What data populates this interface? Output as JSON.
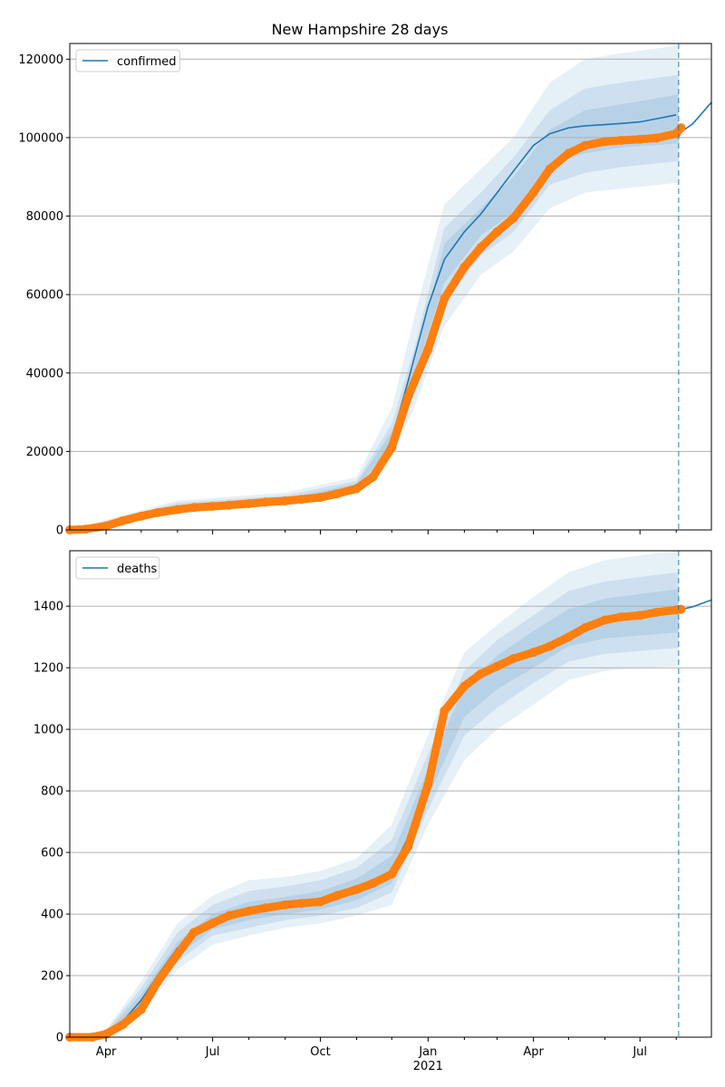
{
  "figure_title": "New Hampshire 28 days",
  "colors": {
    "model_line": "#1f77b4",
    "observed": "#ff7f0e",
    "band": "#1f77b4",
    "grid": "#b0b0b0",
    "axis": "#000000"
  },
  "chart_data": [
    {
      "type": "line",
      "panel": "top",
      "title": "New Hampshire 28 days",
      "legend": [
        "confirmed"
      ],
      "legend_position": "top-left",
      "grid": "horizontal",
      "xlim": [
        "2020-03-01",
        "2021-08-31"
      ],
      "ylim": [
        0,
        124000
      ],
      "yticks": [
        0,
        20000,
        40000,
        60000,
        80000,
        100000,
        120000
      ],
      "ytick_labels": [
        "0",
        "20000",
        "40000",
        "60000",
        "80000",
        "100000",
        "120000"
      ],
      "forecast_start": "2021-08-03",
      "series": [
        {
          "name": "confirmed",
          "kind": "model-median",
          "x": [
            "2020-03-01",
            "2020-04-01",
            "2020-05-01",
            "2020-06-01",
            "2020-07-01",
            "2020-08-01",
            "2020-09-01",
            "2020-10-01",
            "2020-11-01",
            "2020-11-15",
            "2020-12-01",
            "2020-12-15",
            "2021-01-01",
            "2021-01-15",
            "2021-02-01",
            "2021-02-15",
            "2021-03-01",
            "2021-03-15",
            "2021-04-01",
            "2021-04-15",
            "2021-05-01",
            "2021-05-15",
            "2021-06-01",
            "2021-06-15",
            "2021-07-01",
            "2021-07-15",
            "2021-08-01",
            "2021-08-03",
            "2021-08-15",
            "2021-08-31"
          ],
          "y": [
            0,
            1500,
            3500,
            5200,
            5900,
            6600,
            7300,
            8300,
            11000,
            14000,
            23000,
            38000,
            57000,
            69000,
            76000,
            80500,
            86000,
            91500,
            98000,
            101000,
            102500,
            103000,
            103300,
            103600,
            104000,
            104800,
            105800,
            101000,
            103500,
            109000
          ]
        },
        {
          "name": "",
          "kind": "observed",
          "x": [
            "2020-03-01",
            "2020-03-15",
            "2020-04-01",
            "2020-04-15",
            "2020-05-01",
            "2020-05-15",
            "2020-06-01",
            "2020-06-15",
            "2020-07-01",
            "2020-07-15",
            "2020-08-01",
            "2020-08-15",
            "2020-09-01",
            "2020-09-15",
            "2020-10-01",
            "2020-10-15",
            "2020-11-01",
            "2020-11-15",
            "2020-12-01",
            "2020-12-15",
            "2021-01-01",
            "2021-01-15",
            "2021-02-01",
            "2021-02-15",
            "2021-03-01",
            "2021-03-15",
            "2021-04-01",
            "2021-04-15",
            "2021-05-01",
            "2021-05-15",
            "2021-06-01",
            "2021-06-15",
            "2021-07-01",
            "2021-07-15",
            "2021-08-01",
            "2021-08-05"
          ],
          "y": [
            0,
            200,
            1000,
            2300,
            3500,
            4400,
            5200,
            5700,
            6000,
            6300,
            6700,
            7100,
            7400,
            7800,
            8300,
            9200,
            10500,
            13500,
            21000,
            34000,
            46000,
            59000,
            67000,
            72000,
            76000,
            79500,
            86000,
            92000,
            96000,
            98000,
            99000,
            99300,
            99600,
            99900,
            101000,
            102500
          ]
        }
      ],
      "bands": [
        {
          "level": "outer",
          "x": [
            "2020-03-01",
            "2020-06-01",
            "2020-09-01",
            "2020-11-01",
            "2020-12-01",
            "2020-12-20",
            "2021-01-15",
            "2021-02-15",
            "2021-03-15",
            "2021-04-15",
            "2021-05-15",
            "2021-06-15",
            "2021-08-03"
          ],
          "lower": [
            0,
            4500,
            6300,
            9300,
            19000,
            31000,
            52000,
            65000,
            71000,
            82000,
            86000,
            87000,
            88500
          ],
          "upper": [
            0,
            7500,
            9500,
            13500,
            31000,
            54000,
            83000,
            92000,
            100000,
            114000,
            120000,
            121500,
            123500
          ]
        },
        {
          "level": "middle",
          "x": [
            "2020-03-01",
            "2020-06-01",
            "2020-09-01",
            "2020-11-01",
            "2020-12-01",
            "2020-12-20",
            "2021-01-15",
            "2021-02-15",
            "2021-03-15",
            "2021-04-15",
            "2021-05-15",
            "2021-06-15",
            "2021-08-03"
          ],
          "lower": [
            0,
            4800,
            6700,
            9900,
            21000,
            36000,
            58000,
            70000,
            76000,
            88000,
            91000,
            92500,
            94000
          ],
          "upper": [
            0,
            6900,
            8800,
            12500,
            27000,
            46000,
            77000,
            86000,
            95000,
            107000,
            112500,
            114000,
            116000
          ]
        },
        {
          "level": "inner",
          "x": [
            "2020-03-01",
            "2020-06-01",
            "2020-09-01",
            "2020-11-01",
            "2020-12-01",
            "2020-12-20",
            "2021-01-15",
            "2021-02-15",
            "2021-03-15",
            "2021-04-15",
            "2021-05-15",
            "2021-06-15",
            "2021-08-03"
          ],
          "lower": [
            0,
            5000,
            7000,
            10300,
            22000,
            39000,
            63000,
            75000,
            81000,
            93000,
            96000,
            97500,
            98500
          ],
          "upper": [
            0,
            6200,
            8000,
            11800,
            25000,
            42000,
            73000,
            82000,
            90000,
            102000,
            107000,
            108500,
            111000
          ]
        }
      ]
    },
    {
      "type": "line",
      "panel": "bottom",
      "legend": [
        "deaths"
      ],
      "legend_position": "top-left",
      "grid": "horizontal",
      "xlim": [
        "2020-03-01",
        "2021-08-31"
      ],
      "ylim": [
        0,
        1580
      ],
      "yticks": [
        0,
        200,
        400,
        600,
        800,
        1000,
        1200,
        1400
      ],
      "ytick_labels": [
        "0",
        "200",
        "400",
        "600",
        "800",
        "1000",
        "1200",
        "1400"
      ],
      "xtick_labels": [
        "Apr",
        "Jul",
        "Oct",
        "Jan",
        "Apr",
        "Jul"
      ],
      "xtick_dates": [
        "2020-04-01",
        "2020-07-01",
        "2020-10-01",
        "2021-01-01",
        "2021-04-01",
        "2021-07-01"
      ],
      "x_year_label": "2021",
      "forecast_start": "2021-08-03",
      "series": [
        {
          "name": "deaths",
          "kind": "model-median",
          "x": [
            "2020-03-01",
            "2020-04-01",
            "2020-04-15",
            "2020-05-01",
            "2020-05-15",
            "2020-06-01",
            "2020-06-15",
            "2020-07-01",
            "2020-08-01",
            "2020-09-01",
            "2020-10-01",
            "2020-11-01",
            "2020-11-15",
            "2020-12-01",
            "2020-12-15",
            "2021-01-01",
            "2021-01-15",
            "2021-02-01",
            "2021-02-15",
            "2021-03-01",
            "2021-04-01",
            "2021-05-01",
            "2021-06-01",
            "2021-07-01",
            "2021-08-01",
            "2021-08-03",
            "2021-08-15",
            "2021-08-31"
          ],
          "y": [
            0,
            10,
            50,
            120,
            200,
            290,
            340,
            370,
            410,
            425,
            440,
            480,
            500,
            540,
            650,
            820,
            1060,
            1130,
            1170,
            1200,
            1250,
            1310,
            1360,
            1375,
            1388,
            1388,
            1398,
            1420
          ]
        },
        {
          "name": "",
          "kind": "observed",
          "x": [
            "2020-03-01",
            "2020-03-20",
            "2020-04-01",
            "2020-04-15",
            "2020-05-01",
            "2020-05-15",
            "2020-06-01",
            "2020-06-15",
            "2020-07-01",
            "2020-07-15",
            "2020-08-01",
            "2020-08-15",
            "2020-09-01",
            "2020-09-15",
            "2020-10-01",
            "2020-10-15",
            "2020-11-01",
            "2020-11-15",
            "2020-12-01",
            "2020-12-15",
            "2021-01-01",
            "2021-01-15",
            "2021-02-01",
            "2021-02-15",
            "2021-03-01",
            "2021-03-15",
            "2021-04-01",
            "2021-04-15",
            "2021-05-01",
            "2021-05-15",
            "2021-06-01",
            "2021-06-15",
            "2021-07-01",
            "2021-07-15",
            "2021-08-01",
            "2021-08-05"
          ],
          "y": [
            0,
            0,
            10,
            40,
            90,
            180,
            270,
            340,
            370,
            395,
            410,
            420,
            430,
            435,
            440,
            460,
            480,
            500,
            530,
            620,
            820,
            1060,
            1140,
            1180,
            1205,
            1230,
            1250,
            1270,
            1300,
            1330,
            1355,
            1365,
            1370,
            1380,
            1388,
            1390
          ]
        }
      ],
      "bands": [
        {
          "level": "outer",
          "x": [
            "2020-03-01",
            "2020-04-01",
            "2020-05-01",
            "2020-06-01",
            "2020-07-01",
            "2020-08-01",
            "2020-09-01",
            "2020-10-01",
            "2020-11-01",
            "2020-12-01",
            "2021-01-01",
            "2021-02-01",
            "2021-03-01",
            "2021-04-01",
            "2021-05-01",
            "2021-06-01",
            "2021-07-01",
            "2021-08-03"
          ],
          "lower": [
            0,
            5,
            80,
            220,
            300,
            330,
            355,
            370,
            395,
            430,
            690,
            900,
            1000,
            1080,
            1160,
            1190,
            1200,
            1205
          ],
          "upper": [
            0,
            25,
            180,
            370,
            460,
            510,
            520,
            540,
            580,
            690,
            980,
            1250,
            1340,
            1430,
            1510,
            1550,
            1565,
            1580
          ]
        },
        {
          "level": "middle",
          "x": [
            "2020-03-01",
            "2020-04-01",
            "2020-05-01",
            "2020-06-01",
            "2020-07-01",
            "2020-08-01",
            "2020-09-01",
            "2020-10-01",
            "2020-11-01",
            "2020-12-01",
            "2021-01-01",
            "2021-02-01",
            "2021-03-01",
            "2021-04-01",
            "2021-05-01",
            "2021-06-01",
            "2021-07-01",
            "2021-08-03"
          ],
          "lower": [
            0,
            7,
            95,
            245,
            330,
            355,
            380,
            395,
            420,
            470,
            740,
            980,
            1070,
            1150,
            1220,
            1245,
            1255,
            1265
          ],
          "upper": [
            0,
            20,
            160,
            340,
            430,
            475,
            490,
            510,
            550,
            640,
            920,
            1190,
            1290,
            1370,
            1450,
            1480,
            1495,
            1510
          ]
        },
        {
          "level": "inner",
          "x": [
            "2020-03-01",
            "2020-04-01",
            "2020-05-01",
            "2020-06-01",
            "2020-07-01",
            "2020-08-01",
            "2020-09-01",
            "2020-10-01",
            "2020-11-01",
            "2020-12-01",
            "2021-01-01",
            "2021-02-01",
            "2021-03-01",
            "2021-04-01",
            "2021-05-01",
            "2021-06-01",
            "2021-07-01",
            "2021-08-03"
          ],
          "lower": [
            0,
            8,
            105,
            265,
            350,
            380,
            400,
            415,
            445,
            500,
            780,
            1040,
            1130,
            1200,
            1270,
            1295,
            1305,
            1315
          ],
          "upper": [
            0,
            15,
            140,
            310,
            400,
            440,
            455,
            475,
            515,
            590,
            870,
            1140,
            1240,
            1320,
            1390,
            1425,
            1440,
            1455
          ]
        }
      ]
    }
  ]
}
